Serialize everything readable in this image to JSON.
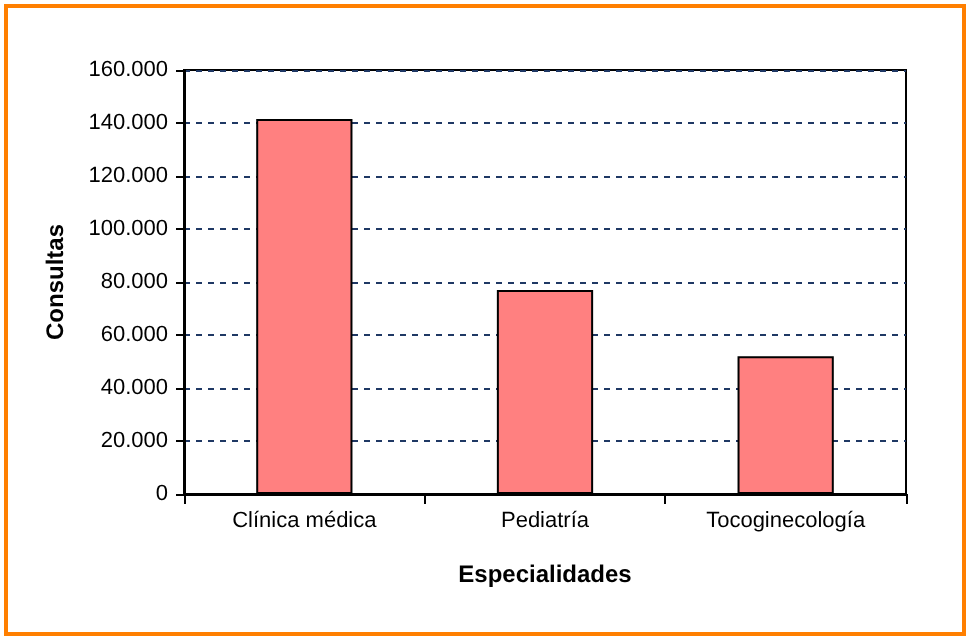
{
  "chart_data": {
    "type": "bar",
    "xlabel": "Especialidades",
    "ylabel": "Consultas",
    "categories": [
      "Clínica médica",
      "Pediatría",
      "Tocoginecología"
    ],
    "values": [
      141500,
      77000,
      52000
    ],
    "color": "#ff8080",
    "ylim": [
      0,
      160000
    ],
    "yticks": [
      0,
      {
        "value": 20000,
        "label": "20.000"
      },
      {
        "value": 40000,
        "label": "40.000"
      },
      {
        "value": 60000,
        "label": "60.000"
      },
      {
        "value": 80000,
        "label": "80.000"
      },
      {
        "value": 100000,
        "label": "100.000"
      },
      {
        "value": 120000,
        "label": "120.000"
      },
      {
        "value": 140000,
        "label": "140.000"
      },
      {
        "value": 160000,
        "label": "160.000"
      }
    ],
    "grid": "y"
  }
}
